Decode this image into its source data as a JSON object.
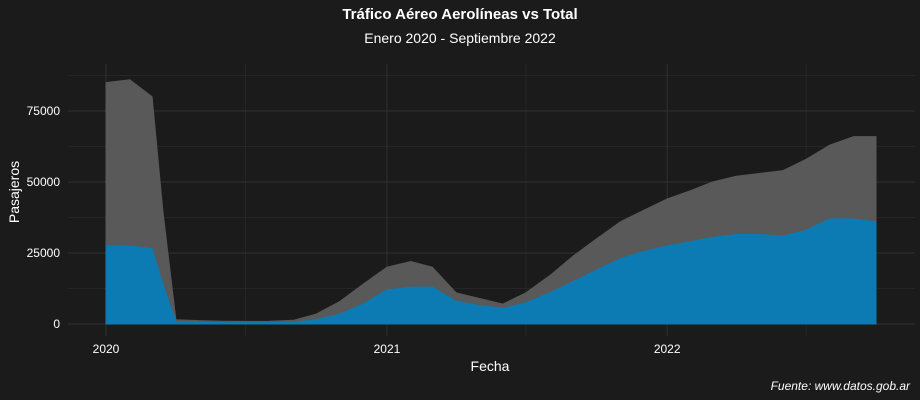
{
  "title": "Tráfico Aéreo Aerolíneas vs Total",
  "subtitle": "Enero 2020 - Septiembre 2022",
  "caption": "Fuente: www.datos.gob.ar",
  "colors": {
    "background": "#1b1b1b",
    "grid": "#303030",
    "total": "#595959",
    "aerolineas": "#0c7bb3"
  },
  "chart_data": {
    "type": "area",
    "xlabel": "Fecha",
    "ylabel": "Pasajeros",
    "x_ticks": [
      "2020",
      "2021",
      "2022"
    ],
    "y_ticks": [
      "0",
      "25000",
      "50000",
      "75000"
    ],
    "xlim": [
      "2020-01-01",
      "2022-09-30"
    ],
    "ylim": [
      0,
      95000
    ],
    "grid": true,
    "legend": "none",
    "x": [
      "2020-01-01",
      "2020-02-01",
      "2020-03-01",
      "2020-03-15",
      "2020-04-01",
      "2020-05-01",
      "2020-06-01",
      "2020-07-01",
      "2020-08-01",
      "2020-09-01",
      "2020-10-01",
      "2020-11-01",
      "2020-12-01",
      "2021-01-01",
      "2021-02-01",
      "2021-03-01",
      "2021-04-01",
      "2021-05-01",
      "2021-06-01",
      "2021-07-01",
      "2021-08-01",
      "2021-09-01",
      "2021-10-01",
      "2021-11-01",
      "2021-12-01",
      "2022-01-01",
      "2022-02-01",
      "2022-03-01",
      "2022-04-01",
      "2022-05-01",
      "2022-06-01",
      "2022-07-01",
      "2022-08-01",
      "2022-09-01",
      "2022-09-30"
    ],
    "series": [
      {
        "values": [
          85000,
          86000,
          80000,
          40000,
          1500,
          1200,
          1000,
          900,
          1000,
          1300,
          3500,
          8000,
          14000,
          20000,
          22000,
          20000,
          11000,
          9000,
          7000,
          11000,
          17000,
          24000,
          30000,
          36000,
          40000,
          44000,
          47000,
          50000,
          52000,
          53000,
          54000,
          58000,
          63000,
          66000,
          66000
        ]
      },
      {
        "values": [
          27500,
          27500,
          26500,
          14000,
          800,
          600,
          500,
          500,
          500,
          600,
          1500,
          3500,
          7000,
          12000,
          13000,
          13000,
          8000,
          6500,
          5500,
          7500,
          11000,
          15000,
          19000,
          23000,
          25500,
          27500,
          29000,
          30500,
          31500,
          31500,
          31000,
          33000,
          37000,
          37000,
          36000
        ]
      }
    ]
  }
}
